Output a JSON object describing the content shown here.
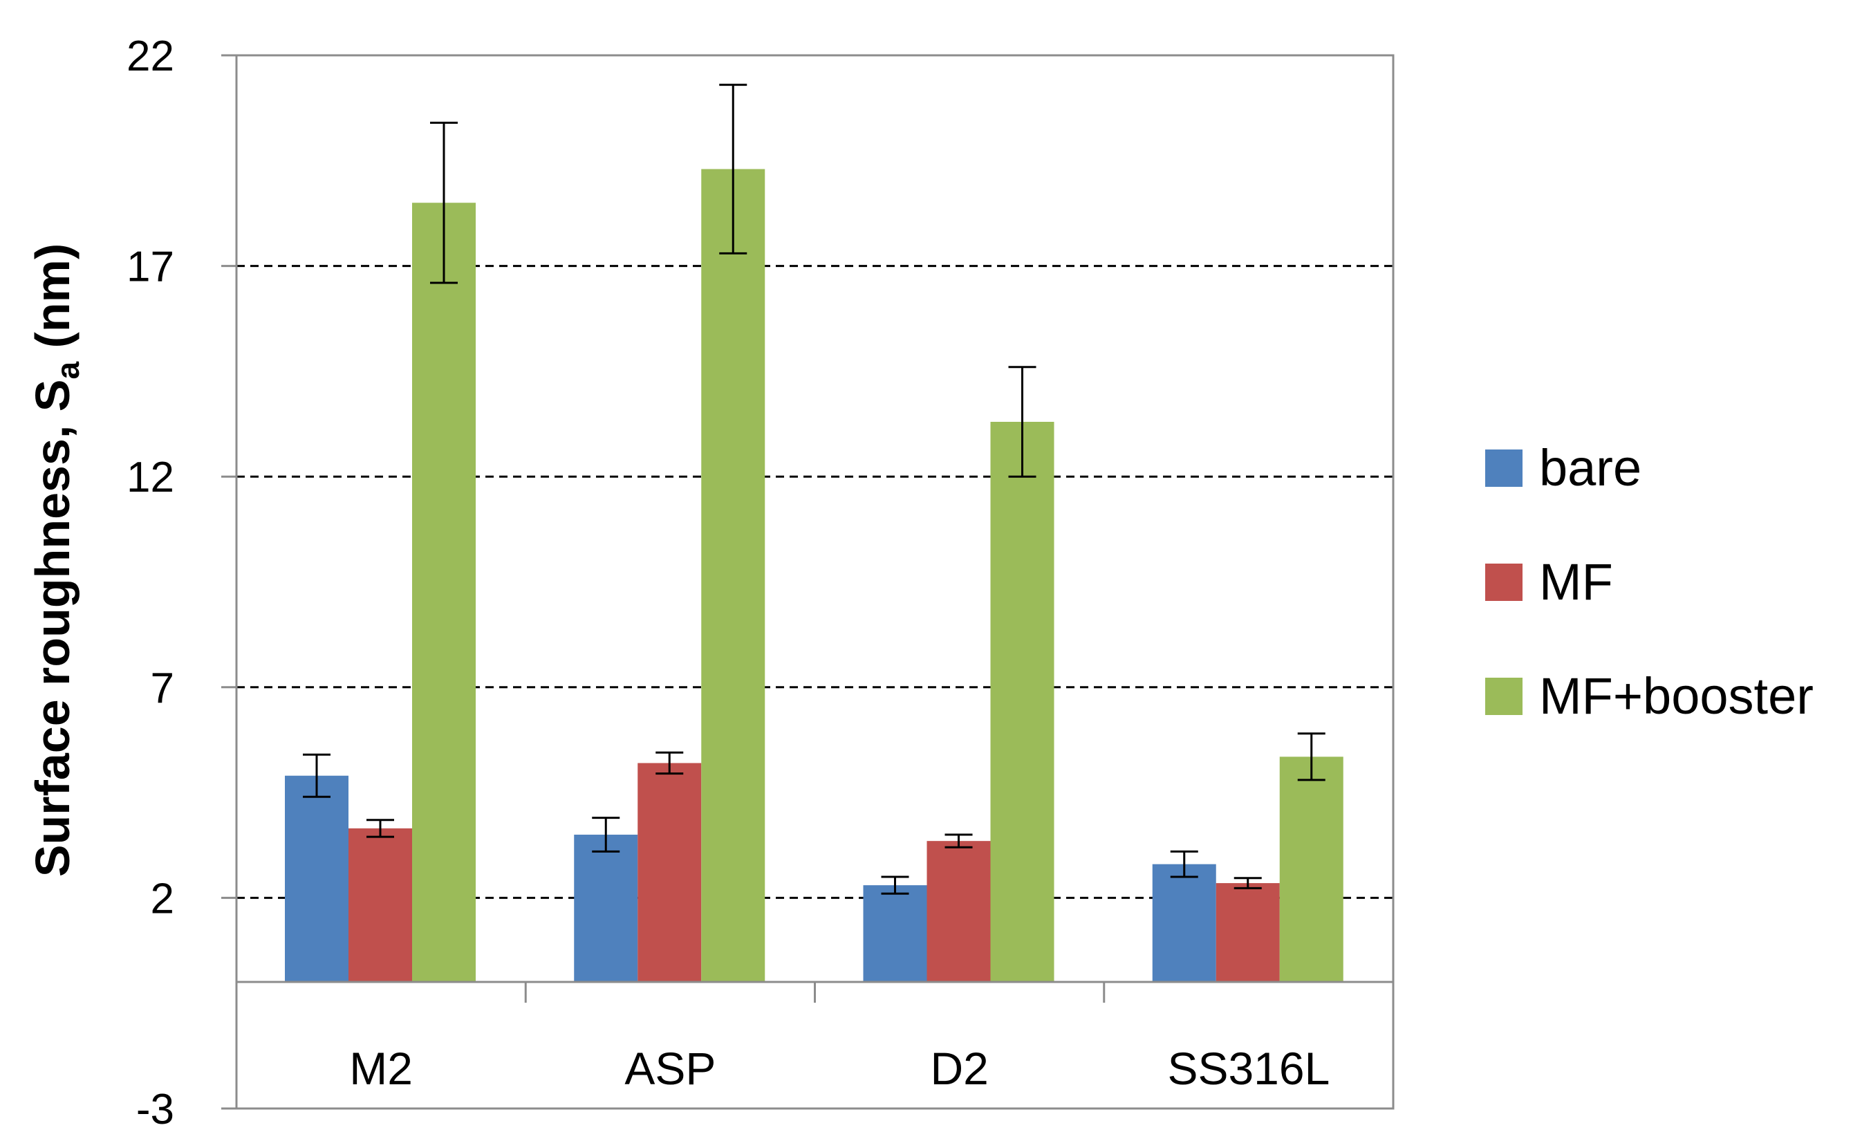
{
  "chart_data": {
    "type": "bar",
    "title": "",
    "xlabel": "",
    "ylabel": "Surface roughness, S",
    "ylabel_subscript": "a",
    "ylabel_suffix": " (nm)",
    "ylim": [
      -3,
      22
    ],
    "yticks": [
      -3,
      2,
      7,
      12,
      17,
      22
    ],
    "gridlines": [
      2,
      7,
      12,
      17
    ],
    "grid_style": "dashed",
    "legend_position": "right",
    "categories": [
      "M2",
      "ASP",
      "D2",
      "SS316L"
    ],
    "series": [
      {
        "name": "bare",
        "color": "#4f81bd",
        "values": [
          4.9,
          3.5,
          2.3,
          2.8
        ],
        "errors": [
          0.5,
          0.4,
          0.2,
          0.3
        ]
      },
      {
        "name": "MF",
        "color": "#c0504d",
        "values": [
          3.65,
          5.2,
          3.35,
          2.35
        ],
        "errors": [
          0.2,
          0.25,
          0.15,
          0.12
        ]
      },
      {
        "name": "MF+booster",
        "color": "#9bbb59",
        "values": [
          18.5,
          19.3,
          13.3,
          5.35
        ],
        "errors": [
          1.9,
          2.0,
          1.3,
          0.55
        ]
      }
    ]
  }
}
